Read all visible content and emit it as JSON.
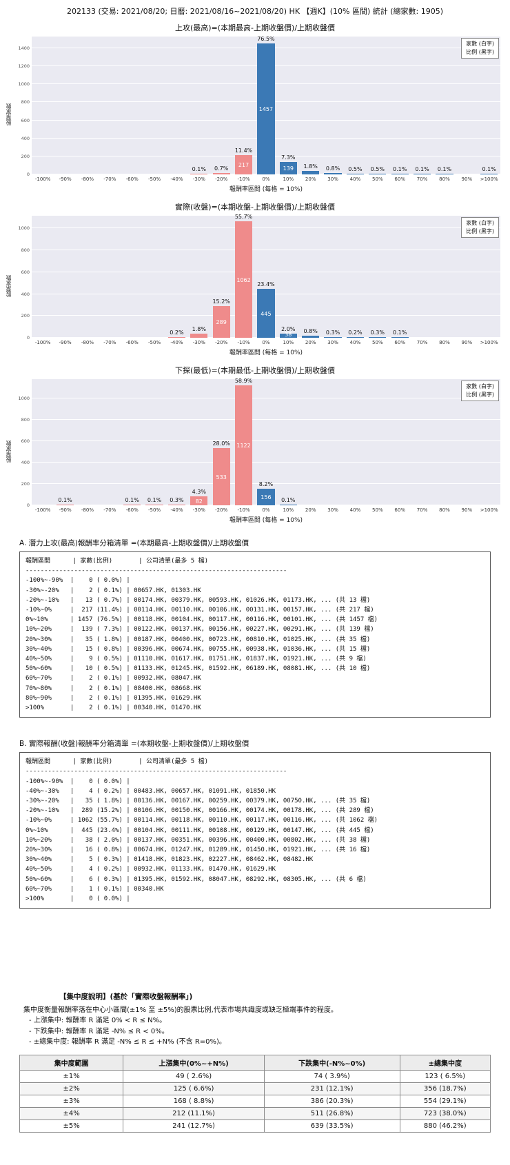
{
  "page": {
    "title": "202133 (交易: 2021/08/20; 日曆: 2021/08/16~2021/08/20) HK 【週K】(10% 區間) 統計 (總家數: 1905)"
  },
  "colors": {
    "negative_bar": "#ef8b8b",
    "positive_bar": "#3b79b5",
    "plot_bg": "#eaeaf2"
  },
  "chart_data": [
    {
      "type": "bar",
      "title": "上攻(最高)=(本期最高-上期收盤價)/上期收盤價",
      "xlabel": "報酬率區間 (每格 = 10%)",
      "ylabel": "股票家數",
      "legend": [
        "家數 (白字)",
        "比例 (黑字)"
      ],
      "ylim": [
        0,
        1530
      ],
      "yticks": [
        0,
        200,
        400,
        600,
        800,
        1000,
        1200,
        1400
      ],
      "categories": [
        "-100%",
        "-90%",
        "-80%",
        "-70%",
        "-60%",
        "-50%",
        "-40%",
        "-30%",
        "-20%",
        "-10%",
        "0%",
        "10%",
        "20%",
        "30%",
        "40%",
        "50%",
        "60%",
        "70%",
        "80%",
        "90%",
        ">100%"
      ],
      "values": [
        0,
        0,
        0,
        0,
        0,
        0,
        0,
        2,
        13,
        217,
        1457,
        139,
        35,
        15,
        9,
        10,
        2,
        2,
        2,
        0,
        2
      ],
      "pct_labels": [
        "",
        "",
        "",
        "",
        "",
        "",
        "",
        "0.1%",
        "0.7%",
        "11.4%",
        "76.5%",
        "7.3%",
        "1.8%",
        "0.8%",
        "0.5%",
        "0.5%",
        "0.1%",
        "0.1%",
        "0.1%",
        "",
        "0.1%"
      ],
      "count_labels": [
        "",
        "",
        "",
        "",
        "",
        "",
        "",
        "",
        "",
        "217",
        "1457",
        "139",
        "",
        "",
        "",
        "",
        "",
        "",
        "",
        "",
        ""
      ]
    },
    {
      "type": "bar",
      "title": "實際(收盤)=(本期收盤-上期收盤價)/上期收盤價",
      "xlabel": "報酬率區間 (每格 = 10%)",
      "ylabel": "股票家數",
      "legend": [
        "家數 (白字)",
        "比例 (黑字)"
      ],
      "ylim": [
        0,
        1115
      ],
      "yticks": [
        0,
        200,
        400,
        600,
        800,
        1000
      ],
      "categories": [
        "-100%",
        "-90%",
        "-80%",
        "-70%",
        "-60%",
        "-50%",
        "-40%",
        "-30%",
        "-20%",
        "-10%",
        "0%",
        "10%",
        "20%",
        "30%",
        "40%",
        "50%",
        "60%",
        "70%",
        "80%",
        "90%",
        ">100%"
      ],
      "values": [
        0,
        0,
        0,
        0,
        0,
        0,
        4,
        35,
        289,
        1062,
        445,
        38,
        16,
        5,
        4,
        6,
        1,
        0,
        0,
        0,
        0
      ],
      "pct_labels": [
        "",
        "",
        "",
        "",
        "",
        "",
        "0.2%",
        "1.8%",
        "15.2%",
        "55.7%",
        "23.4%",
        "2.0%",
        "0.8%",
        "0.3%",
        "0.2%",
        "0.3%",
        "0.1%",
        "",
        "",
        "",
        ""
      ],
      "count_labels": [
        "",
        "",
        "",
        "",
        "",
        "",
        "",
        "",
        "289",
        "1062",
        "445",
        "38",
        "",
        "",
        "",
        "",
        "",
        "",
        "",
        "",
        ""
      ]
    },
    {
      "type": "bar",
      "title": "下探(最低)=(本期最低-上期收盤價)/上期收盤價",
      "xlabel": "報酬率區間 (每格 = 10%)",
      "ylabel": "股票家數",
      "legend": [
        "家數 (白字)",
        "比例 (黑字)"
      ],
      "ylim": [
        0,
        1180
      ],
      "yticks": [
        0,
        200,
        400,
        600,
        800,
        1000
      ],
      "categories": [
        "-100%",
        "-90%",
        "-80%",
        "-70%",
        "-60%",
        "-50%",
        "-40%",
        "-30%",
        "-20%",
        "-10%",
        "0%",
        "10%",
        "20%",
        "30%",
        "40%",
        "50%",
        "60%",
        "70%",
        "80%",
        "90%",
        ">100%"
      ],
      "values": [
        0,
        2,
        0,
        0,
        2,
        2,
        6,
        82,
        533,
        1122,
        156,
        2,
        0,
        0,
        0,
        0,
        0,
        0,
        0,
        0,
        0
      ],
      "pct_labels": [
        "",
        "0.1%",
        "",
        "",
        "0.1%",
        "0.1%",
        "0.3%",
        "4.3%",
        "28.0%",
        "58.9%",
        "8.2%",
        "0.1%",
        "",
        "",
        "",
        "",
        "",
        "",
        "",
        "",
        ""
      ],
      "count_labels": [
        "",
        "",
        "",
        "",
        "",
        "",
        "",
        "82",
        "533",
        "1122",
        "156",
        "",
        "",
        "",
        "",
        "",
        "",
        "",
        "",
        "",
        ""
      ]
    }
  ],
  "section_a": {
    "title": "A. 潛力上攻(最高)報酬率分箱清單 =(本期最高-上期收盤價)/上期收盤價",
    "header": "報酬區間      | 家數(比例)       | 公司清單(最多 5 檔)",
    "separator": "----------------------------------------------------------------------",
    "rows": [
      "-100%~-90%  |    0 ( 0.0%) |",
      "-30%~-20%   |    2 ( 0.1%) | 00657.HK, 01303.HK",
      "-20%~-10%   |   13 ( 0.7%) | 00174.HK, 00379.HK, 00593.HK, 01026.HK, 01173.HK, ... (共 13 檔)",
      "-10%~0%     |  217 (11.4%) | 00114.HK, 00110.HK, 00106.HK, 00131.HK, 00157.HK, ... (共 217 檔)",
      "0%~10%      | 1457 (76.5%) | 00118.HK, 00104.HK, 00117.HK, 00116.HK, 00101.HK, ... (共 1457 檔)",
      "10%~20%     |  139 ( 7.3%) | 00122.HK, 00137.HK, 00156.HK, 00227.HK, 00291.HK, ... (共 139 檔)",
      "20%~30%     |   35 ( 1.8%) | 00187.HK, 00400.HK, 00723.HK, 00810.HK, 01025.HK, ... (共 35 檔)",
      "30%~40%     |   15 ( 0.8%) | 00396.HK, 00674.HK, 00755.HK, 00938.HK, 01036.HK, ... (共 15 檔)",
      "40%~50%     |    9 ( 0.5%) | 01110.HK, 01617.HK, 01751.HK, 01837.HK, 01921.HK, ... (共 9 檔)",
      "50%~60%     |   10 ( 0.5%) | 01133.HK, 01245.HK, 01592.HK, 06189.HK, 08081.HK, ... (共 10 檔)",
      "60%~70%     |    2 ( 0.1%) | 00932.HK, 08047.HK",
      "70%~80%     |    2 ( 0.1%) | 08400.HK, 08668.HK",
      "80%~90%     |    2 ( 0.1%) | 01395.HK, 01629.HK",
      ">100%       |    2 ( 0.1%) | 00340.HK, 01470.HK"
    ]
  },
  "section_b": {
    "title": "B. 實際報酬(收盤)報酬率分箱清單 =(本期收盤-上期收盤價)/上期收盤價",
    "header": "報酬區間      | 家數(比例)       | 公司清單(最多 5 檔)",
    "separator": "----------------------------------------------------------------------",
    "rows": [
      "-100%~-90%  |    0 ( 0.0%) |",
      "-40%~-30%   |    4 ( 0.2%) | 00483.HK, 00657.HK, 01091.HK, 01850.HK",
      "-30%~-20%   |   35 ( 1.8%) | 00136.HK, 00167.HK, 00259.HK, 00379.HK, 00750.HK, ... (共 35 檔)",
      "-20%~-10%   |  289 (15.2%) | 00106.HK, 00150.HK, 00166.HK, 00174.HK, 00178.HK, ... (共 289 檔)",
      "-10%~0%     | 1062 (55.7%) | 00114.HK, 00118.HK, 00110.HK, 00117.HK, 00116.HK, ... (共 1062 檔)",
      "0%~10%      |  445 (23.4%) | 00104.HK, 00111.HK, 00108.HK, 00129.HK, 00147.HK, ... (共 445 檔)",
      "10%~20%     |   38 ( 2.0%) | 00137.HK, 00351.HK, 00396.HK, 00400.HK, 00802.HK, ... (共 38 檔)",
      "20%~30%     |   16 ( 0.8%) | 00674.HK, 01247.HK, 01289.HK, 01450.HK, 01921.HK, ... (共 16 檔)",
      "30%~40%     |    5 ( 0.3%) | 01418.HK, 01823.HK, 02227.HK, 08462.HK, 08482.HK",
      "40%~50%     |    4 ( 0.2%) | 00932.HK, 01133.HK, 01470.HK, 01629.HK",
      "50%~60%     |    6 ( 0.3%) | 01395.HK, 01592.HK, 08047.HK, 08292.HK, 08305.HK, ... (共 6 檔)",
      "60%~70%     |    1 ( 0.1%) | 00340.HK",
      ">100%       |    0 ( 0.0%) |"
    ]
  },
  "concentration": {
    "title": "【集中度說明】(基於「實際收盤報酬率」)",
    "desc": "集中度衡量報酬率落在中心小區間(±1% 至 ±5%)的股票比例,代表市場共識度或缺乏極端事件的程度。",
    "bullets": [
      "- 上漲集中: 報酬率 R 滿足 0% < R ≤ N%。",
      "- 下跌集中: 報酬率 R 滿足 -N% ≤ R < 0%。",
      "- ±總集中度: 報酬率 R 滿足 -N% ≤ R ≤ +N% (不含 R=0%)。"
    ],
    "table": {
      "headers": [
        "集中度範圍",
        "上漲集中(0%~+N%)",
        "下跌集中(-N%~0%)",
        "±總集中度"
      ],
      "rows": [
        [
          "±1%",
          "49 ( 2.6%)",
          "74 ( 3.9%)",
          "123 ( 6.5%)"
        ],
        [
          "±2%",
          "125 ( 6.6%)",
          "231 (12.1%)",
          "356 (18.7%)"
        ],
        [
          "±3%",
          "168 ( 8.8%)",
          "386 (20.3%)",
          "554 (29.1%)"
        ],
        [
          "±4%",
          "212 (11.1%)",
          "511 (26.8%)",
          "723 (38.0%)"
        ],
        [
          "±5%",
          "241 (12.7%)",
          "639 (33.5%)",
          "880 (46.2%)"
        ]
      ]
    }
  }
}
